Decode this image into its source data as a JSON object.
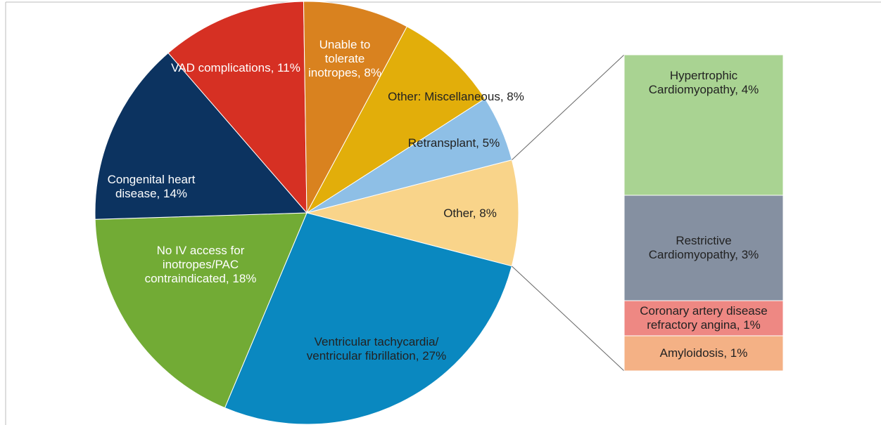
{
  "chart_data": {
    "type": "pie-of-bar",
    "categories": [
      "Other,",
      "Ventricular tachycardia/ ventricular fibrillation,",
      "No IV access for inotropes/PAC contraindicated,",
      "Congenital heart disease,",
      "VAD complications,",
      "Unable to tolerate inotropes,",
      "Other: Miscellaneous,",
      "Retransplant,"
    ],
    "values": [
      8,
      27,
      18,
      14,
      11,
      8,
      8,
      5
    ],
    "value_labels": [
      "8%",
      "27%",
      "18%",
      "14%",
      "11%",
      "8%",
      "8%",
      "5%"
    ],
    "colors": [
      "#f9d48a",
      "#0a88c0",
      "#72ab35",
      "#0c3360",
      "#d63023",
      "#d9821f",
      "#e2ae0a",
      "#8ebfe6"
    ],
    "bar": {
      "categories": [
        "Hypertrophic Cardiomyopathy,",
        "Restrictive Cardiomyopathy,",
        "Coronary artery disease refractory angina,",
        "Amyloidosis,"
      ],
      "values": [
        4,
        3,
        1,
        1
      ],
      "value_labels": [
        "4%",
        "3%",
        "1%",
        "1%"
      ],
      "colors": [
        "#a9d392",
        "#8590a1",
        "#ee8883",
        "#f4b185"
      ]
    }
  }
}
